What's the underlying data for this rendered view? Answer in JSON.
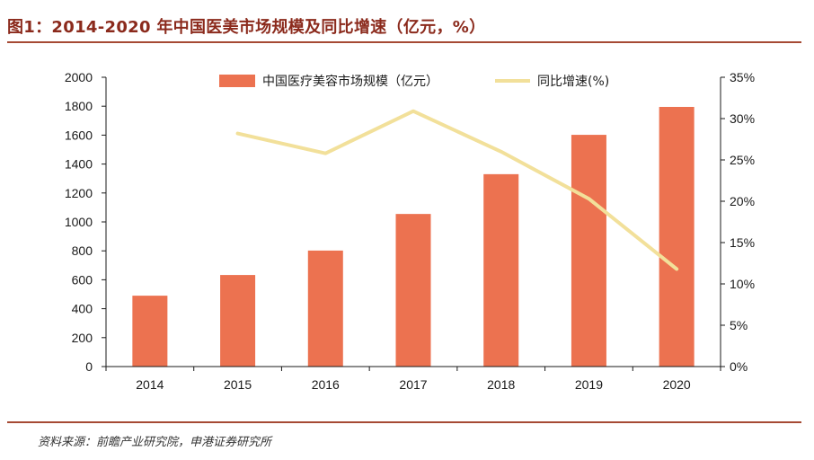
{
  "header": {
    "title": "图1：2014-2020 年中国医美市场规模及同比增速（亿元，%）"
  },
  "footer": {
    "source": "资料来源：前瞻产业研究院，申港证券研究所"
  },
  "colors": {
    "bar": "#ec7250",
    "line": "#f2e09a",
    "axis": "#1a1a1a",
    "title": "#8b2a1c",
    "rule": "#a64a34"
  },
  "chart_data": {
    "type": "bar",
    "categories": [
      "2014",
      "2015",
      "2016",
      "2017",
      "2018",
      "2019",
      "2020"
    ],
    "series": [
      {
        "name": "中国医疗美容市场规模（亿元）",
        "kind": "bar",
        "axis": "left",
        "values": [
          490,
          633,
          802,
          1055,
          1330,
          1602,
          1795
        ]
      },
      {
        "name": "同比增速(%)",
        "kind": "line",
        "axis": "right",
        "values": [
          null,
          28.2,
          25.8,
          30.9,
          26.0,
          20.3,
          11.8
        ]
      }
    ],
    "y_left": {
      "min": 0,
      "max": 2000,
      "ticks": [
        0,
        200,
        400,
        600,
        800,
        1000,
        1200,
        1400,
        1600,
        1800,
        2000
      ]
    },
    "y_right": {
      "min": 0,
      "max": 35,
      "ticks": [
        0,
        5,
        10,
        15,
        20,
        25,
        30,
        35
      ],
      "tick_labels": [
        "0%",
        "5%",
        "10%",
        "15%",
        "20%",
        "25%",
        "30%",
        "35%"
      ]
    },
    "legend": {
      "position": "top-center",
      "entries": [
        "中国医疗美容市场规模（亿元）",
        "同比增速(%)"
      ]
    },
    "grid": false
  }
}
